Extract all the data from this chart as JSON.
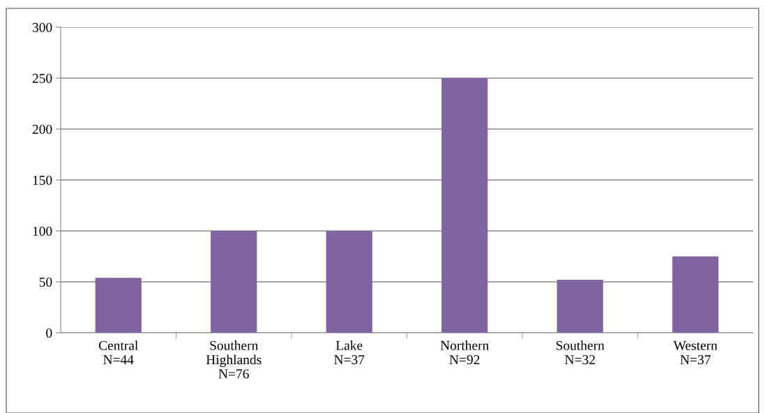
{
  "chart_data": {
    "type": "bar",
    "categories": [
      "Central\nN=44",
      "Southern\nHighlands\nN=76",
      "Lake\nN=37",
      "Northern\nN=92",
      "Southern\nN=32",
      "Western\nN=37"
    ],
    "values": [
      54,
      100,
      100,
      250,
      52,
      75
    ],
    "color": "#8064a2",
    "ylim": [
      0,
      300
    ],
    "yticks": [
      0,
      50,
      100,
      150,
      200,
      250,
      300
    ],
    "grid": "y"
  }
}
